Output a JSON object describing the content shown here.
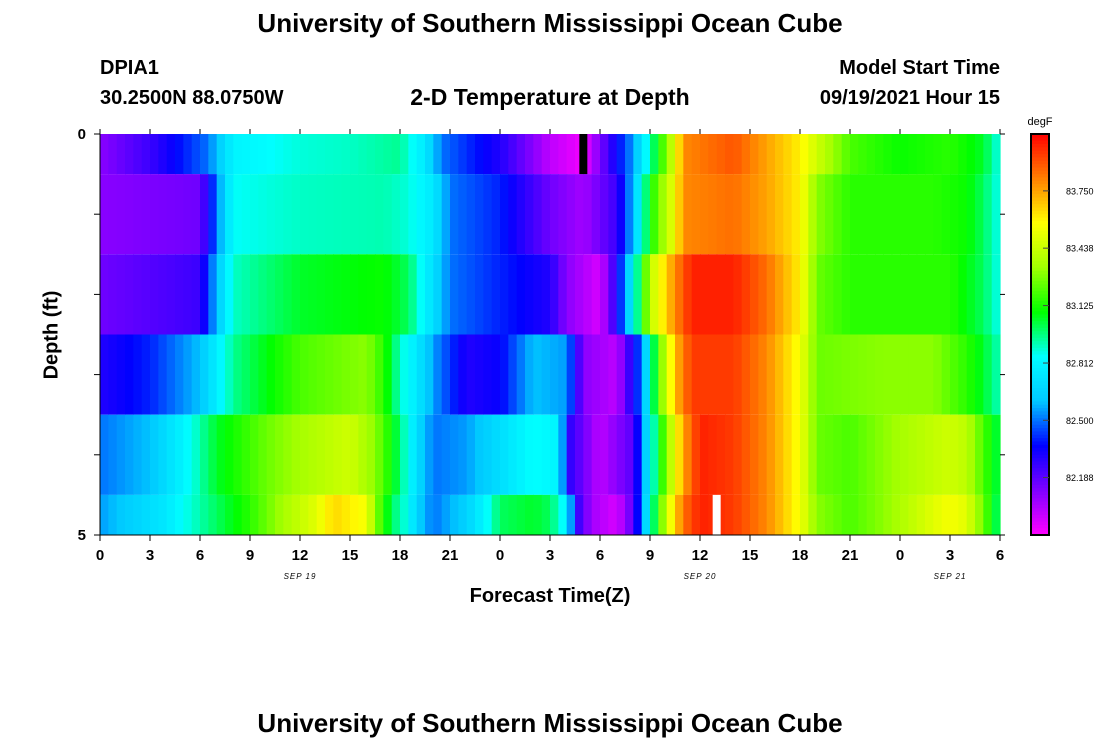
{
  "page": {
    "top_title": "University of Southern Mississippi Ocean Cube",
    "bottom_title": "University of Southern Mississippi Ocean Cube",
    "station": "DPIA1",
    "location": "30.2500N  88.0750W",
    "subtitle": "2-D Temperature at Depth",
    "model_start_label": "Model Start Time",
    "model_start_value": "09/19/2021 Hour 15"
  },
  "chart_data": {
    "type": "heatmap",
    "title": "2-D Temperature at Depth",
    "xlabel": "Forecast Time(Z)",
    "ylabel": "Depth (ft)",
    "x_tick_labels": [
      "0",
      "3",
      "6",
      "9",
      "12",
      "15",
      "18",
      "21",
      "0",
      "3",
      "6",
      "9",
      "12",
      "15",
      "18",
      "21",
      "0",
      "3",
      "6"
    ],
    "x_tick_hours": [
      0,
      3,
      6,
      9,
      12,
      15,
      18,
      21,
      24,
      27,
      30,
      33,
      36,
      39,
      42,
      45,
      48,
      51,
      54
    ],
    "x_range_hours": [
      0,
      54
    ],
    "x_date_labels": [
      {
        "text": "SEP 19",
        "hour": 12
      },
      {
        "text": "SEP 20",
        "hour": 36
      },
      {
        "text": "SEP 21",
        "hour": 51
      }
    ],
    "y_tick_labels": [
      "0",
      "5"
    ],
    "y_range": [
      0,
      5
    ],
    "y_inverted": true,
    "depth_layers": 5,
    "colorbar": {
      "unit": "degF",
      "vmin": 81.875,
      "vmax": 84.06,
      "tick_values": [
        82.188,
        82.5,
        82.812,
        83.125,
        83.438,
        83.75
      ],
      "tick_labels": [
        "82.188",
        "82.500",
        "82.812",
        "83.125",
        "83.438",
        "83.750"
      ],
      "stops": [
        "#ff00ff",
        "#8000ff",
        "#0000ff",
        "#00c8ff",
        "#00ffff",
        "#00ff00",
        "#a0ff00",
        "#ffff00",
        "#ff8000",
        "#ff0000"
      ]
    },
    "profiles": [
      {
        "depth_from": 0,
        "depth_to": 0.5,
        "points": [
          [
            0,
            82.1
          ],
          [
            3,
            82.25
          ],
          [
            6.5,
            82.5
          ],
          [
            8,
            82.8
          ],
          [
            12,
            82.88
          ],
          [
            15,
            82.9
          ],
          [
            18,
            82.95
          ],
          [
            19.5,
            82.75
          ],
          [
            20.5,
            82.5
          ],
          [
            24,
            82.3
          ],
          [
            27,
            82.0
          ],
          [
            29,
            81.9
          ],
          [
            31,
            82.35
          ],
          [
            32,
            82.55
          ],
          [
            33.5,
            83.1
          ],
          [
            34.5,
            83.5
          ],
          [
            35,
            83.8
          ],
          [
            38,
            83.9
          ],
          [
            40,
            83.75
          ],
          [
            42,
            83.6
          ],
          [
            43,
            83.45
          ],
          [
            45,
            83.2
          ],
          [
            48,
            83.1
          ],
          [
            51,
            83.15
          ],
          [
            53,
            83.05
          ],
          [
            54,
            82.85
          ]
        ]
      },
      {
        "depth_from": 0.5,
        "depth_to": 1.5,
        "points": [
          [
            0,
            82.1
          ],
          [
            6,
            82.15
          ],
          [
            7,
            82.5
          ],
          [
            8,
            82.85
          ],
          [
            12,
            82.9
          ],
          [
            17,
            82.92
          ],
          [
            18.5,
            82.88
          ],
          [
            20,
            82.75
          ],
          [
            21,
            82.5
          ],
          [
            24,
            82.4
          ],
          [
            27,
            82.15
          ],
          [
            29,
            82.05
          ],
          [
            31,
            82.25
          ],
          [
            32,
            82.6
          ],
          [
            33,
            83.1
          ],
          [
            34.5,
            83.55
          ],
          [
            35,
            83.8
          ],
          [
            38,
            83.85
          ],
          [
            40,
            83.75
          ],
          [
            42,
            83.6
          ],
          [
            43,
            83.3
          ],
          [
            45,
            83.15
          ],
          [
            50,
            83.15
          ],
          [
            52,
            83.1
          ],
          [
            53,
            83.0
          ],
          [
            54,
            82.85
          ]
        ]
      },
      {
        "depth_from": 1.5,
        "depth_to": 2.5,
        "points": [
          [
            0,
            82.15
          ],
          [
            6,
            82.25
          ],
          [
            7,
            82.6
          ],
          [
            8,
            82.9
          ],
          [
            12,
            83.05
          ],
          [
            17,
            83.1
          ],
          [
            18.5,
            83.0
          ],
          [
            20,
            82.7
          ],
          [
            21,
            82.5
          ],
          [
            24,
            82.4
          ],
          [
            27,
            82.3
          ],
          [
            28,
            82.1
          ],
          [
            30,
            81.95
          ],
          [
            31,
            82.3
          ],
          [
            32,
            82.8
          ],
          [
            33,
            83.4
          ],
          [
            34.5,
            83.8
          ],
          [
            35.5,
            84.0
          ],
          [
            38,
            84.0
          ],
          [
            40,
            83.85
          ],
          [
            42,
            83.6
          ],
          [
            43,
            83.25
          ],
          [
            45,
            83.15
          ],
          [
            51,
            83.15
          ],
          [
            53,
            83.0
          ],
          [
            54,
            82.85
          ]
        ]
      },
      {
        "depth_from": 2.5,
        "depth_to": 3.5,
        "points": [
          [
            0,
            82.3
          ],
          [
            3,
            82.4
          ],
          [
            6,
            82.6
          ],
          [
            8,
            82.95
          ],
          [
            12,
            83.2
          ],
          [
            16,
            83.3
          ],
          [
            17,
            83.15
          ],
          [
            18,
            82.9
          ],
          [
            19,
            82.75
          ],
          [
            20,
            82.55
          ],
          [
            22,
            82.3
          ],
          [
            24,
            82.35
          ],
          [
            26,
            82.6
          ],
          [
            28,
            82.55
          ],
          [
            29,
            82.1
          ],
          [
            31,
            82.0
          ],
          [
            32.5,
            82.5
          ],
          [
            33.5,
            83.2
          ],
          [
            34.5,
            83.7
          ],
          [
            35.5,
            83.95
          ],
          [
            38,
            83.95
          ],
          [
            40,
            83.8
          ],
          [
            42,
            83.55
          ],
          [
            43,
            83.25
          ],
          [
            47,
            83.3
          ],
          [
            50,
            83.3
          ],
          [
            52,
            83.15
          ],
          [
            53,
            83.05
          ],
          [
            54,
            82.9
          ]
        ]
      },
      {
        "depth_from": 3.5,
        "depth_to": 4.5,
        "points": [
          [
            0,
            82.5
          ],
          [
            3,
            82.6
          ],
          [
            5,
            82.8
          ],
          [
            7,
            83.05
          ],
          [
            10,
            83.25
          ],
          [
            12,
            83.35
          ],
          [
            15,
            83.45
          ],
          [
            16.5,
            83.3
          ],
          [
            17.5,
            83.1
          ],
          [
            18.5,
            82.85
          ],
          [
            19,
            82.7
          ],
          [
            20,
            82.5
          ],
          [
            22,
            82.55
          ],
          [
            24,
            82.7
          ],
          [
            26,
            82.85
          ],
          [
            27.5,
            82.8
          ],
          [
            28,
            82.3
          ],
          [
            30,
            82.0
          ],
          [
            32,
            82.2
          ],
          [
            33,
            82.8
          ],
          [
            34,
            83.3
          ],
          [
            35,
            83.75
          ],
          [
            36,
            84.0
          ],
          [
            38,
            83.95
          ],
          [
            40,
            83.8
          ],
          [
            42,
            83.55
          ],
          [
            43,
            83.25
          ],
          [
            45,
            83.2
          ],
          [
            48,
            83.35
          ],
          [
            51,
            83.45
          ],
          [
            52,
            83.4
          ],
          [
            53,
            83.2
          ],
          [
            54,
            83.0
          ]
        ]
      },
      {
        "depth_from": 4.5,
        "depth_to": 5,
        "points": [
          [
            0,
            82.55
          ],
          [
            2,
            82.65
          ],
          [
            4,
            82.75
          ],
          [
            5,
            82.85
          ],
          [
            7,
            83.0
          ],
          [
            9,
            83.15
          ],
          [
            11,
            83.35
          ],
          [
            13,
            83.5
          ],
          [
            14,
            83.65
          ],
          [
            16,
            83.55
          ],
          [
            16.5,
            83.3
          ],
          [
            17.5,
            83.0
          ],
          [
            18.5,
            82.85
          ],
          [
            19,
            82.65
          ],
          [
            20,
            82.5
          ],
          [
            22,
            82.65
          ],
          [
            23,
            82.8
          ],
          [
            24,
            83.0
          ],
          [
            26,
            83.05
          ],
          [
            27,
            83.0
          ],
          [
            28,
            82.8
          ],
          [
            28.5,
            82.3
          ],
          [
            29.5,
            82.05
          ],
          [
            31,
            81.95
          ],
          [
            32,
            82.2
          ],
          [
            33,
            82.85
          ],
          [
            34,
            83.45
          ],
          [
            35,
            83.85
          ],
          [
            36,
            84.0
          ],
          [
            38,
            83.95
          ],
          [
            40,
            83.8
          ],
          [
            42,
            83.55
          ],
          [
            43,
            83.3
          ],
          [
            45,
            83.2
          ],
          [
            47,
            83.3
          ],
          [
            50,
            83.5
          ],
          [
            51,
            83.55
          ],
          [
            52,
            83.5
          ],
          [
            53,
            83.25
          ],
          [
            54,
            82.95
          ]
        ]
      }
    ],
    "markers": [
      {
        "color": "#000000",
        "hour": 29,
        "depth_from": 0,
        "depth_to": 0.5
      },
      {
        "color": "#ffffff",
        "hour": 37,
        "depth_from": 4.5,
        "depth_to": 5
      }
    ]
  }
}
